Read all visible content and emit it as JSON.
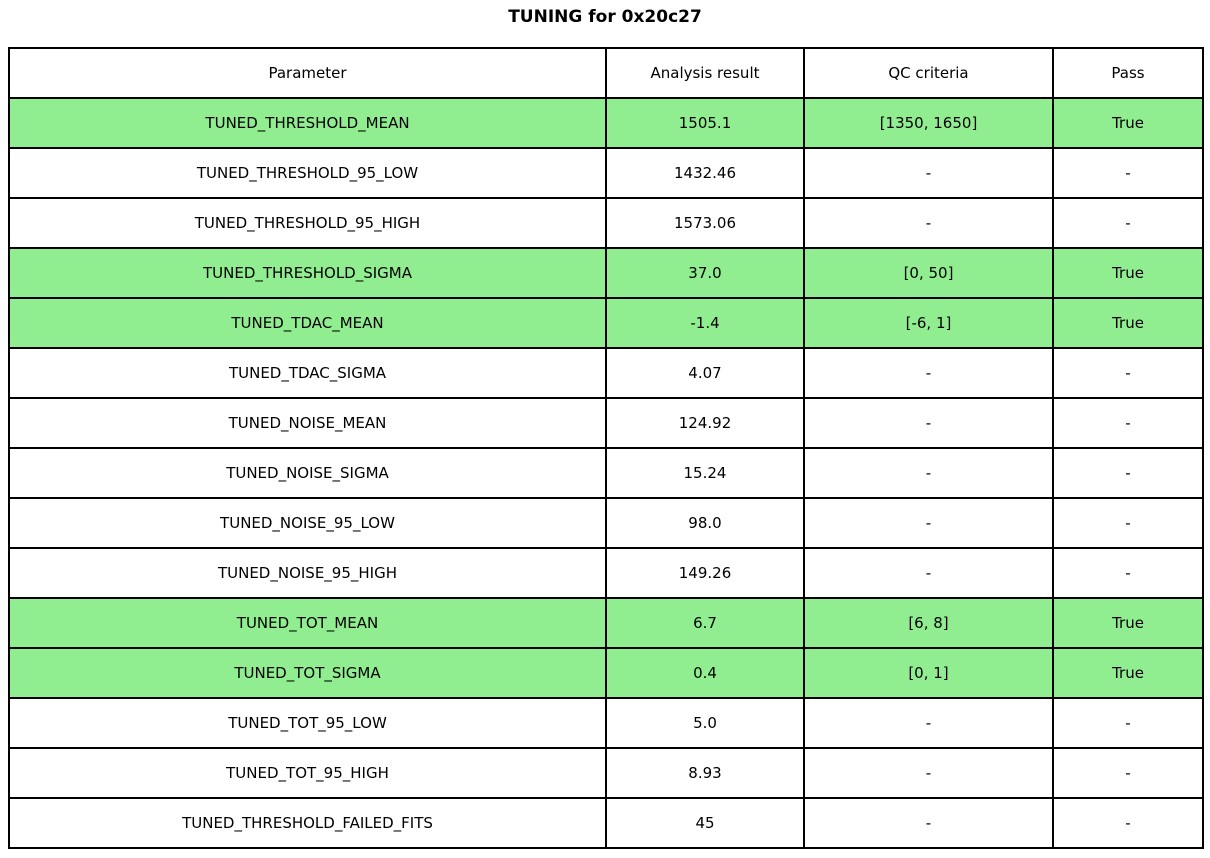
{
  "title": "TUNING for 0x20c27",
  "colors": {
    "highlight_green": "#90EE90",
    "border": "#000000",
    "background": "#FFFFFF",
    "text": "#000000"
  },
  "chart_data": {
    "type": "table",
    "title": "TUNING for 0x20c27",
    "columns": [
      "Parameter",
      "Analysis result",
      "QC criteria",
      "Pass"
    ],
    "rows": [
      {
        "parameter": "TUNED_THRESHOLD_MEAN",
        "analysis_result": "1505.1",
        "qc_criteria": "[1350, 1650]",
        "pass": "True",
        "highlighted": true
      },
      {
        "parameter": "TUNED_THRESHOLD_95_LOW",
        "analysis_result": "1432.46",
        "qc_criteria": "-",
        "pass": "-",
        "highlighted": false
      },
      {
        "parameter": "TUNED_THRESHOLD_95_HIGH",
        "analysis_result": "1573.06",
        "qc_criteria": "-",
        "pass": "-",
        "highlighted": false
      },
      {
        "parameter": "TUNED_THRESHOLD_SIGMA",
        "analysis_result": "37.0",
        "qc_criteria": "[0, 50]",
        "pass": "True",
        "highlighted": true
      },
      {
        "parameter": "TUNED_TDAC_MEAN",
        "analysis_result": "-1.4",
        "qc_criteria": "[-6, 1]",
        "pass": "True",
        "highlighted": true
      },
      {
        "parameter": "TUNED_TDAC_SIGMA",
        "analysis_result": "4.07",
        "qc_criteria": "-",
        "pass": "-",
        "highlighted": false
      },
      {
        "parameter": "TUNED_NOISE_MEAN",
        "analysis_result": "124.92",
        "qc_criteria": "-",
        "pass": "-",
        "highlighted": false
      },
      {
        "parameter": "TUNED_NOISE_SIGMA",
        "analysis_result": "15.24",
        "qc_criteria": "-",
        "pass": "-",
        "highlighted": false
      },
      {
        "parameter": "TUNED_NOISE_95_LOW",
        "analysis_result": "98.0",
        "qc_criteria": "-",
        "pass": "-",
        "highlighted": false
      },
      {
        "parameter": "TUNED_NOISE_95_HIGH",
        "analysis_result": "149.26",
        "qc_criteria": "-",
        "pass": "-",
        "highlighted": false
      },
      {
        "parameter": "TUNED_TOT_MEAN",
        "analysis_result": "6.7",
        "qc_criteria": "[6, 8]",
        "pass": "True",
        "highlighted": true
      },
      {
        "parameter": "TUNED_TOT_SIGMA",
        "analysis_result": "0.4",
        "qc_criteria": "[0, 1]",
        "pass": "True",
        "highlighted": true
      },
      {
        "parameter": "TUNED_TOT_95_LOW",
        "analysis_result": "5.0",
        "qc_criteria": "-",
        "pass": "-",
        "highlighted": false
      },
      {
        "parameter": "TUNED_TOT_95_HIGH",
        "analysis_result": "8.93",
        "qc_criteria": "-",
        "pass": "-",
        "highlighted": false
      },
      {
        "parameter": "TUNED_THRESHOLD_FAILED_FITS",
        "analysis_result": "45",
        "qc_criteria": "-",
        "pass": "-",
        "highlighted": false
      }
    ]
  }
}
